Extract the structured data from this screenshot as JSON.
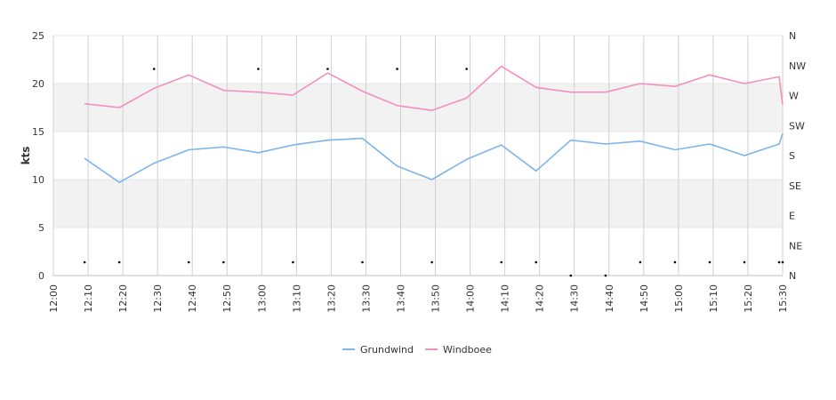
{
  "chart_data": {
    "type": "line",
    "ylabel": "kts",
    "ylim": [
      0,
      25
    ],
    "y_ticks": [
      "0",
      "5",
      "10",
      "15",
      "20",
      "25"
    ],
    "bands": [
      [
        5,
        10
      ],
      [
        15,
        20
      ]
    ],
    "right_axis": {
      "labels": [
        "N",
        "NE",
        "E",
        "SE",
        "S",
        "SW",
        "W",
        "NW",
        "N"
      ],
      "range": [
        0,
        360
      ]
    },
    "x_ticks": [
      "12:00",
      "12:10",
      "12:20",
      "12:30",
      "12:40",
      "12:50",
      "13:00",
      "13:10",
      "13:20",
      "13:30",
      "13:40",
      "13:50",
      "14:00",
      "14:10",
      "14:20",
      "14:30",
      "14:40",
      "14:50",
      "15:00",
      "15:10",
      "15:20",
      "15:30"
    ],
    "x": [
      "12:09",
      "12:19",
      "12:29",
      "12:39",
      "12:49",
      "12:59",
      "13:09",
      "13:19",
      "13:29",
      "13:39",
      "13:49",
      "13:59",
      "14:09",
      "14:19",
      "14:29",
      "14:39",
      "14:49",
      "14:59",
      "15:09",
      "15:19",
      "15:29",
      "15:30"
    ],
    "series": [
      {
        "name": "Grundwind",
        "color": "#7cb5ec",
        "values": [
          12.2,
          9.7,
          11.7,
          13.1,
          13.4,
          12.8,
          13.6,
          14.1,
          14.3,
          11.4,
          10.0,
          12.1,
          13.6,
          10.9,
          14.1,
          13.7,
          14.0,
          13.1,
          13.7,
          12.5,
          13.7,
          14.8
        ]
      },
      {
        "name": "Windboee",
        "color": "#f28fbf",
        "values": [
          17.9,
          17.5,
          19.5,
          20.9,
          19.3,
          19.1,
          18.8,
          21.1,
          19.2,
          17.7,
          17.2,
          18.5,
          21.8,
          19.6,
          19.1,
          19.1,
          20.0,
          19.7,
          20.9,
          20.0,
          20.7,
          17.8
        ]
      }
    ],
    "direction_markers": {
      "x": [
        "12:09",
        "12:19",
        "12:29",
        "12:39",
        "12:49",
        "12:59",
        "13:09",
        "13:19",
        "13:29",
        "13:39",
        "13:49",
        "13:59",
        "14:09",
        "14:19",
        "14:29",
        "14:39",
        "14:49",
        "14:59",
        "15:09",
        "15:19",
        "15:29",
        "15:30"
      ],
      "deg": [
        20,
        20,
        310,
        20,
        20,
        310,
        20,
        310,
        20,
        310,
        20,
        310,
        20,
        20,
        0,
        0,
        20,
        20,
        20,
        20,
        20,
        20
      ]
    },
    "grid": true,
    "legend_position": "bottom-center"
  }
}
